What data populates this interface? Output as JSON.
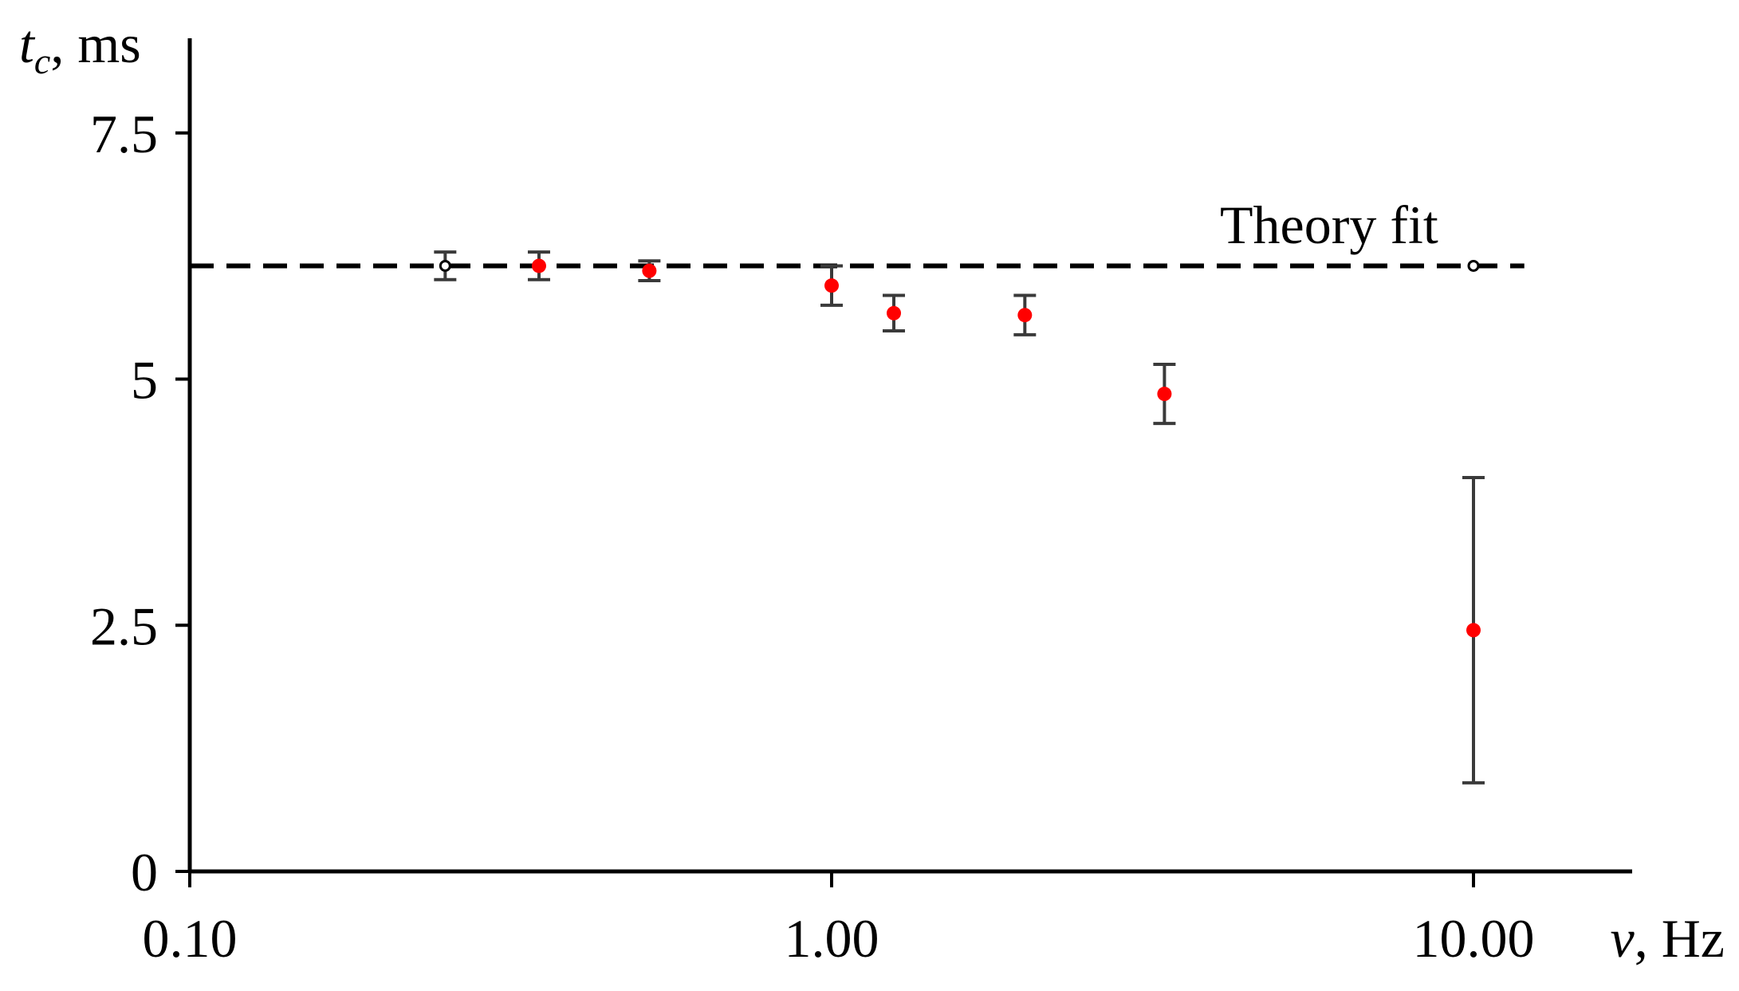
{
  "chart_data": {
    "type": "scatter",
    "title": "",
    "xscale": "log",
    "xlim": [
      0.1,
      25
    ],
    "ylim": [
      0,
      8.5
    ],
    "grid": false,
    "xlabel": {
      "symbol": "v",
      "unit": ", Hz"
    },
    "ylabel": {
      "symbol": "t",
      "subscript": "c",
      "unit": ", ms"
    },
    "x_ticks": [
      {
        "value": 0.1,
        "label": "0.10"
      },
      {
        "value": 1.0,
        "label": "1.00"
      },
      {
        "value": 10.0,
        "label": "10.00"
      }
    ],
    "y_ticks": [
      {
        "value": 0,
        "label": "0"
      },
      {
        "value": 2.5,
        "label": "2.5"
      },
      {
        "value": 5,
        "label": "5"
      },
      {
        "value": 7.5,
        "label": "7.5"
      }
    ],
    "theory_fit": {
      "label": "Theory fit",
      "y": 6.15,
      "x_range": [
        0.1,
        12
      ]
    },
    "points": [
      {
        "x": 0.25,
        "y": 6.15,
        "err": 0.14,
        "marker": "black-open"
      },
      {
        "x": 0.35,
        "y": 6.15,
        "err": 0.14,
        "marker": "red"
      },
      {
        "x": 0.52,
        "y": 6.1,
        "err": 0.1,
        "marker": "red"
      },
      {
        "x": 1.0,
        "y": 5.95,
        "err": 0.2,
        "marker": "red"
      },
      {
        "x": 1.25,
        "y": 5.67,
        "err": 0.18,
        "marker": "red"
      },
      {
        "x": 2.0,
        "y": 5.65,
        "err": 0.2,
        "marker": "red"
      },
      {
        "x": 3.3,
        "y": 4.85,
        "err": 0.3,
        "marker": "red"
      },
      {
        "x": 10.0,
        "y": 2.45,
        "err": 1.55,
        "marker": "red"
      },
      {
        "x": 10.0,
        "y": 6.15,
        "err": 0,
        "marker": "black-open"
      }
    ],
    "colors": {
      "axis": "#000000",
      "point": "#ff0000",
      "errorbar": "#3a3a3a",
      "fit": "#000000"
    }
  }
}
